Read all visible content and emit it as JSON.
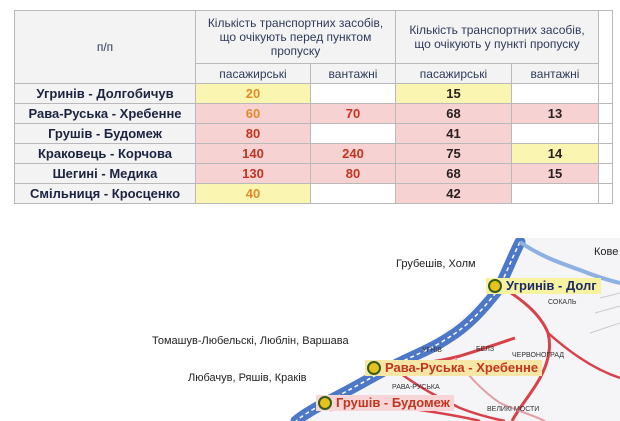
{
  "table": {
    "col_pp": "п/п",
    "group_before": "Кількість транспортних засобів, що очікують перед пунктом пропуску",
    "group_at": "Кількість транспортних засобів, що очікують у пункті пропуску",
    "sub_passenger": "пасажирські",
    "sub_cargo": "вантажні",
    "rows": [
      {
        "name": "Угринів - Долгобичув",
        "before_passenger": "20",
        "before_cargo": "",
        "at_passenger": "15",
        "at_cargo": ""
      },
      {
        "name": "Рава-Руська - Хребенне",
        "before_passenger": "60",
        "before_cargo": "70",
        "at_passenger": "68",
        "at_cargo": "13"
      },
      {
        "name": "Грушів - Будомеж",
        "before_passenger": "80",
        "before_cargo": "",
        "at_passenger": "41",
        "at_cargo": ""
      },
      {
        "name": "Краковець - Корчова",
        "before_passenger": "140",
        "before_cargo": "240",
        "at_passenger": "75",
        "at_cargo": "14"
      },
      {
        "name": "Шегині - Медика",
        "before_passenger": "130",
        "before_cargo": "80",
        "at_passenger": "68",
        "at_cargo": "15"
      },
      {
        "name": "Смільниця - Кросценко",
        "before_passenger": "40",
        "before_cargo": "",
        "at_passenger": "42",
        "at_cargo": ""
      }
    ]
  },
  "map": {
    "destinations": {
      "hrubeshiv": "Грубешів, Холм",
      "kovel": "Кове",
      "tomashuv": "Томашув-Любельскі, Люблін, Варшава",
      "liubachuv": "Любачув, Ряшів, Краків"
    },
    "crossings": {
      "uhryniv": "Угринів - Долг",
      "rava": "Рава-Руська - Хребенне",
      "hrushiv": "Грушів - Будомеж"
    },
    "towns": {
      "sokal": "СОКАЛЬ",
      "uhniv": "УГНІВ",
      "belz": "БЕЛЗ",
      "chervonohrad": "ЧЕРВОНОГРАД",
      "rava_ruska": "РАВА-РУСЬКА",
      "velyki_mosty": "ВЕЛИКІ МОСТИ"
    },
    "colors": {
      "river": "#4d78c8",
      "road": "#d8404a",
      "marker": "#e6c21e"
    }
  }
}
